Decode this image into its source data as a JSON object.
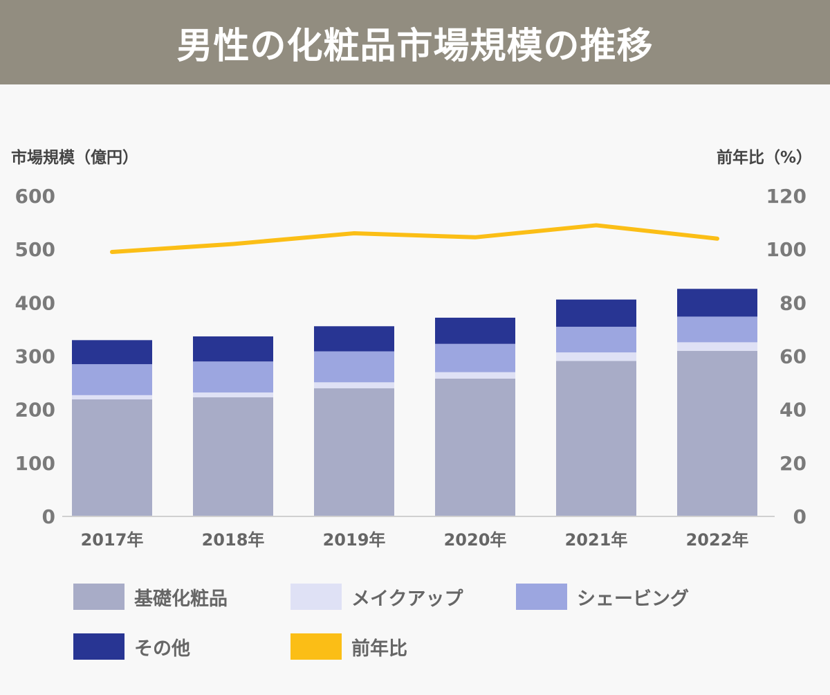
{
  "title": "男性の化粧品市場規模の推移",
  "chart_data": {
    "type": "bar",
    "stacked": true,
    "categories": [
      "2017年",
      "2018年",
      "2019年",
      "2020年",
      "2021年",
      "2022年"
    ],
    "y_left": {
      "label": "市場規模（億円）",
      "ylim": [
        0,
        600
      ],
      "ticks": [
        0,
        100,
        200,
        300,
        400,
        500,
        600
      ]
    },
    "y_right": {
      "label": "前年比（%）",
      "ylim": [
        0,
        120
      ],
      "ticks": [
        0,
        20,
        40,
        60,
        80,
        100,
        120
      ]
    },
    "series": [
      {
        "name": "基礎化粧品",
        "type": "bar",
        "color": "#a8acc7",
        "values": [
          219,
          223,
          240,
          258,
          291,
          310
        ]
      },
      {
        "name": "メイクアップ",
        "type": "bar",
        "color": "#dfe1f5",
        "values": [
          8,
          9,
          11,
          12,
          16,
          16
        ]
      },
      {
        "name": "シェービング",
        "type": "bar",
        "color": "#9ca6e0",
        "values": [
          58,
          58,
          58,
          53,
          48,
          48
        ]
      },
      {
        "name": "その他",
        "type": "bar",
        "color": "#283593",
        "values": [
          45,
          47,
          47,
          49,
          51,
          52
        ]
      },
      {
        "name": "前年比",
        "type": "line",
        "axis": "right",
        "color": "#fbbe16",
        "values": [
          99,
          102,
          106,
          104.5,
          109,
          104
        ]
      }
    ],
    "grid": false,
    "legend_position": "bottom"
  }
}
